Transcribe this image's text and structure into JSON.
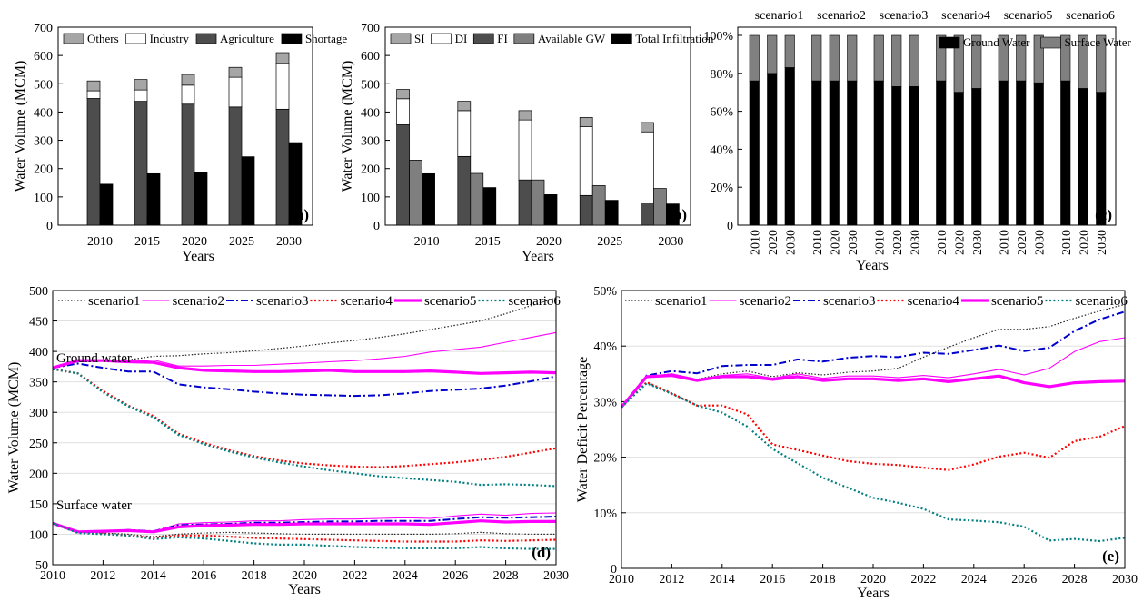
{
  "chart_data": [
    {
      "type": "bar",
      "panel": "(a)",
      "xlabel": "Years",
      "ylabel": "Water Volume (MCM)",
      "ylim": [
        0,
        700
      ],
      "yticks": [
        0,
        100,
        200,
        300,
        400,
        500,
        600,
        700
      ],
      "categories": [
        "2010",
        "2015",
        "2020",
        "2025",
        "2030"
      ],
      "stacked_series": [
        {
          "name": "Agriculture",
          "color": "#4d4d4d",
          "values": [
            448,
            438,
            428,
            418,
            410
          ]
        },
        {
          "name": "Industry",
          "color": "#ffffff",
          "values": [
            27,
            40,
            67,
            105,
            162
          ]
        },
        {
          "name": "Others",
          "color": "#a6a6a6",
          "values": [
            35,
            37,
            38,
            35,
            38
          ]
        }
      ],
      "separate_series": [
        {
          "name": "Shortage",
          "color": "#000000",
          "values": [
            145,
            182,
            188,
            242,
            292
          ]
        }
      ],
      "legend_order": [
        "Others",
        "Industry",
        "Agriculture",
        "Shortage"
      ],
      "legend_position": "top"
    },
    {
      "type": "bar",
      "panel": "(b)",
      "xlabel": "Years",
      "ylabel": "Water Volume (MCM)",
      "ylim": [
        0,
        700
      ],
      "yticks": [
        0,
        100,
        200,
        300,
        400,
        500,
        600,
        700
      ],
      "categories": [
        "2010",
        "2015",
        "2020",
        "2025",
        "2030"
      ],
      "stacked_series": [
        {
          "name": "FI",
          "color": "#4d4d4d",
          "values": [
            355,
            243,
            160,
            105,
            75
          ]
        },
        {
          "name": "DI",
          "color": "#ffffff",
          "values": [
            92,
            162,
            212,
            243,
            255
          ]
        },
        {
          "name": "SI",
          "color": "#a6a6a6",
          "values": [
            33,
            33,
            33,
            33,
            33
          ]
        }
      ],
      "separate_series": [
        {
          "name": "Available GW",
          "color": "#7f7f7f",
          "values": [
            230,
            183,
            160,
            140,
            130
          ]
        },
        {
          "name": "Total Infiltration",
          "color": "#000000",
          "values": [
            182,
            133,
            108,
            88,
            75
          ]
        }
      ],
      "legend_order": [
        "SI",
        "DI",
        "FI",
        "Available GW",
        "Total Infiltration"
      ],
      "legend_position": "top"
    },
    {
      "type": "bar",
      "panel": "(c)",
      "xlabel": "Years",
      "ylabel": "",
      "ylim": [
        0,
        100
      ],
      "yticks": [
        "0",
        "20%",
        "40%",
        "60%",
        "80%",
        "100%"
      ],
      "groups": [
        {
          "name": "scenario1",
          "years": [
            "2010",
            "2020",
            "2030"
          ],
          "ground_water": [
            76,
            80,
            83
          ]
        },
        {
          "name": "scenario2",
          "years": [
            "2010",
            "2020",
            "2030"
          ],
          "ground_water": [
            76,
            76,
            76
          ]
        },
        {
          "name": "scenario3",
          "years": [
            "2010",
            "2020",
            "2030"
          ],
          "ground_water": [
            76,
            73,
            73
          ]
        },
        {
          "name": "scenario4",
          "years": [
            "2010",
            "2020",
            "2030"
          ],
          "ground_water": [
            76,
            70,
            72
          ]
        },
        {
          "name": "scenario5",
          "years": [
            "2010",
            "2020",
            "2030"
          ],
          "ground_water": [
            76,
            76,
            75
          ]
        },
        {
          "name": "scenario6",
          "years": [
            "2010",
            "2020",
            "2030"
          ],
          "ground_water": [
            76,
            72,
            70
          ]
        }
      ],
      "series_names": [
        "Ground Water",
        "Surface Water"
      ],
      "series_colors": [
        "#000000",
        "#808080"
      ],
      "legend_position": "top-right"
    },
    {
      "type": "line",
      "panel": "(d)",
      "xlabel": "Years",
      "ylabel": "Water Volume (MCM)",
      "xlim": [
        2010,
        2030
      ],
      "ylim": [
        50,
        500
      ],
      "xticks": [
        2010,
        2012,
        2014,
        2016,
        2018,
        2020,
        2022,
        2024,
        2026,
        2028,
        2030
      ],
      "yticks": [
        50,
        100,
        150,
        200,
        250,
        300,
        350,
        400,
        450,
        500
      ],
      "grid": true,
      "annotations": [
        "Ground water",
        "Surface water"
      ],
      "x": [
        2010,
        2011,
        2012,
        2013,
        2014,
        2015,
        2016,
        2017,
        2018,
        2019,
        2020,
        2021,
        2022,
        2023,
        2024,
        2025,
        2026,
        2027,
        2028,
        2029,
        2030
      ],
      "series": [
        {
          "name": "scenario1",
          "color": "#222222",
          "style": "dotted",
          "group": "Ground water",
          "values": [
            373,
            383,
            386,
            386,
            392,
            393,
            396,
            398,
            401,
            405,
            409,
            414,
            418,
            423,
            429,
            436,
            443,
            450,
            462,
            475,
            488
          ]
        },
        {
          "name": "scenario2",
          "color": "#ff00ff",
          "style": "thin",
          "group": "Ground water",
          "values": [
            373,
            383,
            385,
            383,
            386,
            376,
            376,
            377,
            377,
            379,
            381,
            383,
            385,
            388,
            392,
            399,
            403,
            407,
            415,
            423,
            431
          ]
        },
        {
          "name": "scenario3",
          "color": "#0000cc",
          "style": "dashdot",
          "group": "Ground water",
          "values": [
            373,
            380,
            373,
            367,
            367,
            346,
            341,
            338,
            334,
            331,
            329,
            328,
            327,
            328,
            331,
            335,
            337,
            339,
            344,
            351,
            359
          ]
        },
        {
          "name": "scenario4",
          "color": "#ff0000",
          "style": "dotted-thick",
          "group": "Ground water",
          "values": [
            371,
            364,
            335,
            311,
            294,
            265,
            250,
            238,
            228,
            221,
            216,
            213,
            211,
            210,
            212,
            215,
            218,
            222,
            227,
            234,
            241
          ]
        },
        {
          "name": "scenario5",
          "color": "#ff00ff",
          "style": "thick",
          "group": "Ground water",
          "values": [
            373,
            385,
            385,
            383,
            382,
            373,
            369,
            368,
            367,
            367,
            368,
            369,
            367,
            367,
            367,
            368,
            366,
            364,
            365,
            366,
            365
          ]
        },
        {
          "name": "scenario6",
          "color": "#008080",
          "style": "dotted-thick",
          "group": "Ground water",
          "values": [
            371,
            364,
            333,
            310,
            292,
            263,
            248,
            236,
            226,
            218,
            211,
            205,
            200,
            195,
            192,
            189,
            186,
            181,
            182,
            181,
            179
          ]
        },
        {
          "name": "scenario1",
          "color": "#222222",
          "style": "dotted",
          "group": "Surface water",
          "values": [
            118,
            103,
            102,
            100,
            96,
            100,
            102,
            103,
            102,
            101,
            100,
            100,
            100,
            100,
            100,
            100,
            101,
            103,
            101,
            100,
            100
          ]
        },
        {
          "name": "scenario2",
          "color": "#ff00ff",
          "style": "thin",
          "group": "Surface water",
          "values": [
            118,
            104,
            105,
            107,
            104,
            117,
            119,
            120,
            122,
            122,
            124,
            125,
            125,
            126,
            127,
            126,
            130,
            133,
            131,
            134,
            135
          ]
        },
        {
          "name": "scenario3",
          "color": "#0000cc",
          "style": "dashdot",
          "group": "Surface water",
          "values": [
            118,
            104,
            105,
            107,
            105,
            115,
            116,
            117,
            119,
            119,
            120,
            121,
            121,
            122,
            122,
            122,
            125,
            128,
            127,
            128,
            129
          ]
        },
        {
          "name": "scenario4",
          "color": "#ff0000",
          "style": "dotted-thick",
          "group": "Surface water",
          "values": [
            118,
            103,
            101,
            98,
            94,
            98,
            98,
            96,
            94,
            93,
            92,
            91,
            90,
            89,
            88,
            88,
            88,
            90,
            89,
            90,
            91
          ]
        },
        {
          "name": "scenario5",
          "color": "#ff00ff",
          "style": "thick",
          "group": "Surface water",
          "values": [
            118,
            104,
            105,
            106,
            104,
            112,
            114,
            115,
            116,
            116,
            117,
            117,
            117,
            117,
            117,
            116,
            119,
            122,
            120,
            121,
            121
          ]
        },
        {
          "name": "scenario6",
          "color": "#008080",
          "style": "dotted-thick",
          "group": "Surface water",
          "values": [
            118,
            102,
            100,
            98,
            92,
            95,
            93,
            89,
            85,
            83,
            83,
            81,
            79,
            78,
            77,
            77,
            77,
            79,
            77,
            76,
            76
          ]
        }
      ],
      "legend_position": "top"
    },
    {
      "type": "line",
      "panel": "(e)",
      "xlabel": "Years",
      "ylabel": "Water Deficit Percentage",
      "xlim": [
        2010,
        2030
      ],
      "ylim": [
        0,
        50
      ],
      "xticks": [
        2010,
        2012,
        2014,
        2016,
        2018,
        2020,
        2022,
        2024,
        2026,
        2028,
        2030
      ],
      "yticks": [
        "0",
        "10%",
        "20%",
        "30%",
        "40%",
        "50%"
      ],
      "grid": true,
      "x": [
        2010,
        2011,
        2012,
        2013,
        2014,
        2015,
        2016,
        2017,
        2018,
        2019,
        2020,
        2021,
        2022,
        2023,
        2024,
        2025,
        2026,
        2027,
        2028,
        2029,
        2030
      ],
      "series": [
        {
          "name": "scenario1",
          "color": "#222222",
          "style": "dotted",
          "values": [
            29,
            34.5,
            35,
            34,
            35,
            35.5,
            34.5,
            35.2,
            34.8,
            35.3,
            35.5,
            36,
            38,
            39.8,
            41.5,
            43,
            43,
            43.5,
            45,
            46.3,
            47.5
          ]
        },
        {
          "name": "scenario2",
          "color": "#ff00ff",
          "style": "thin",
          "values": [
            29,
            34.5,
            35,
            34,
            34.7,
            35,
            34.2,
            35,
            34.2,
            34.6,
            34.6,
            34.3,
            34.7,
            34.3,
            35,
            35.8,
            34.8,
            36,
            39,
            40.8,
            41.5
          ]
        },
        {
          "name": "scenario3",
          "color": "#0000cc",
          "style": "dashdot",
          "values": [
            29,
            34.7,
            35.5,
            35.1,
            36.4,
            36.6,
            36.6,
            37.6,
            37.2,
            37.9,
            38.2,
            38,
            38.8,
            38.6,
            39.3,
            40.1,
            39.1,
            39.7,
            42.7,
            44.8,
            46.2
          ]
        },
        {
          "name": "scenario4",
          "color": "#ff0000",
          "style": "dotted-thick",
          "values": [
            29,
            33.5,
            31.5,
            29.3,
            29.3,
            27.7,
            22.3,
            21.3,
            20.3,
            19.3,
            18.8,
            18.6,
            18.1,
            17.7,
            18.7,
            20.1,
            20.8,
            19.9,
            22.9,
            23.7,
            25.6
          ]
        },
        {
          "name": "scenario5",
          "color": "#ff00ff",
          "style": "thick",
          "values": [
            29,
            34.5,
            34.7,
            33.8,
            34.5,
            34.5,
            34,
            34.5,
            33.8,
            34.1,
            34.1,
            33.8,
            34.1,
            33.6,
            34.1,
            34.6,
            33.4,
            32.7,
            33.4,
            33.6,
            33.7
          ]
        },
        {
          "name": "scenario6",
          "color": "#008080",
          "style": "dotted-thick",
          "values": [
            29,
            33.3,
            31.4,
            29.3,
            28,
            25.5,
            21.5,
            18.9,
            16.3,
            14.5,
            12.7,
            11.8,
            10.7,
            8.8,
            8.6,
            8.3,
            7.5,
            5,
            5.3,
            4.9,
            5.5
          ]
        }
      ],
      "legend_position": "top"
    }
  ]
}
